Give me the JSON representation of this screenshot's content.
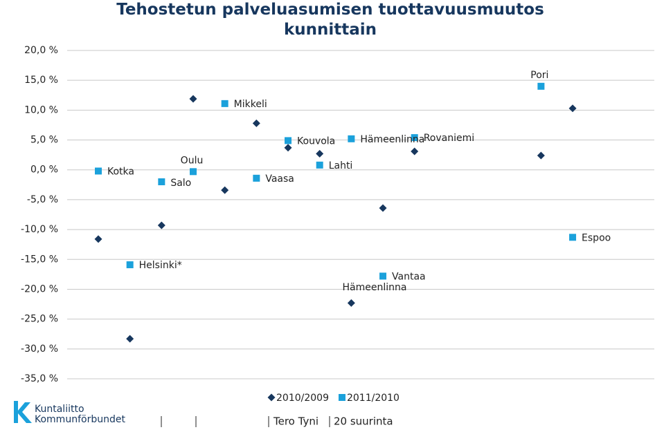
{
  "chart_data": {
    "type": "scatter",
    "title": "Tehostetun palveluasumisen tuottavuusmuutos kunnittain",
    "categories": [
      "Kotka",
      "Helsinki*",
      "Salo",
      "Oulu",
      "Mikkeli",
      "Vaasa",
      "Kouvola",
      "Lahti",
      "Hämeenlinna",
      "Vantaa",
      "Rovaniemi",
      null,
      null,
      null,
      "Pori",
      "Espoo"
    ],
    "series": [
      {
        "name": "2010/2009",
        "color": "#17375e",
        "marker": "diamond",
        "values": [
          -11.6,
          -28.3,
          -9.3,
          11.9,
          -3.4,
          7.8,
          3.7,
          2.7,
          -22.3,
          -6.4,
          3.1,
          null,
          null,
          null,
          2.4,
          10.3
        ]
      },
      {
        "name": "2011/2010",
        "color": "#1ba1db",
        "marker": "square",
        "values": [
          -0.2,
          -15.9,
          -2.0,
          -0.3,
          11.1,
          -1.4,
          4.9,
          0.8,
          5.2,
          -17.8,
          5.4,
          null,
          null,
          null,
          14.0,
          -11.3
        ]
      }
    ],
    "annotations": [
      "Hämeenlinna"
    ],
    "ylim": [
      -35,
      20
    ],
    "yticks": [
      {
        "value": -35,
        "label": "-35,0 %"
      },
      {
        "value": -30,
        "label": "-30,0 %"
      },
      {
        "value": -25,
        "label": "-25,0 %"
      },
      {
        "value": -20,
        "label": "-20,0 %"
      },
      {
        "value": -15,
        "label": "-15,0 %"
      },
      {
        "value": -10,
        "label": "-10,0 %"
      },
      {
        "value": -5,
        "label": "-5,0 %"
      },
      {
        "value": 0,
        "label": "0,0 %"
      },
      {
        "value": 5,
        "label": "5,0 %"
      },
      {
        "value": 10,
        "label": "10,0 %"
      },
      {
        "value": 15,
        "label": "15,0 %"
      },
      {
        "value": 20,
        "label": "20,0 %"
      }
    ],
    "grid": true
  },
  "footer": {
    "logo": [
      "Kuntaliitto",
      "Kommunförbundet"
    ],
    "author": "Tero Tyni",
    "note": "20 suurinta"
  }
}
